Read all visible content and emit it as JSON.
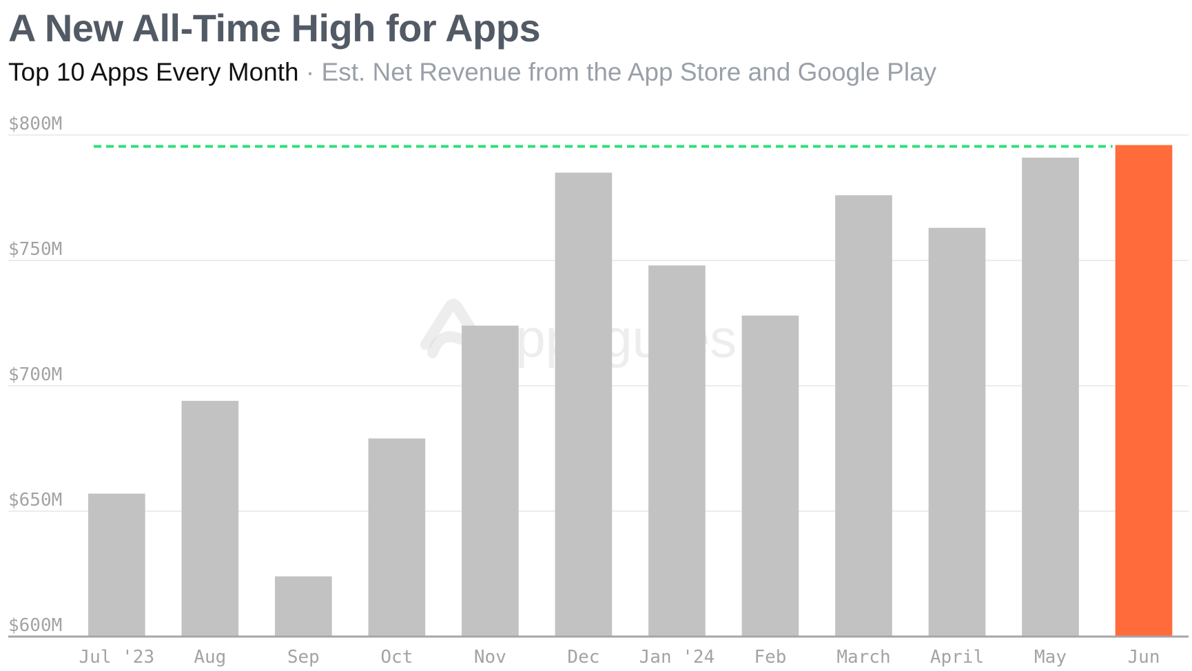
{
  "chart_data": {
    "type": "bar",
    "title": "A New All-Time High for Apps",
    "subtitle_main": "Top 10 Apps Every Month",
    "subtitle_separator": "·",
    "subtitle_rest": "Est. Net Revenue from the App Store and Google Play",
    "watermark": "appfigures",
    "categories": [
      "Jul '23",
      "Aug",
      "Sep",
      "Oct",
      "Nov",
      "Dec",
      "Jan '24",
      "Feb",
      "March",
      "April",
      "May",
      "Jun"
    ],
    "values": [
      657,
      694,
      624,
      679,
      724,
      785,
      748,
      728,
      776,
      763,
      791,
      796
    ],
    "unit": "$M",
    "ylim": [
      600,
      800
    ],
    "yticks": [
      600,
      650,
      700,
      750,
      800
    ],
    "ytick_labels": [
      "$600M",
      "$650M",
      "$700M",
      "$750M",
      "$800M"
    ],
    "reference_line": {
      "value": 796,
      "style": "dashed",
      "color": "#2ee07a"
    },
    "grid": true,
    "colors": {
      "bar": "#c2c2c2",
      "highlight_bar": "#ff6b3a",
      "highlight_index": 11,
      "grid": "#e6e6e6",
      "axis": "#a6a6a6",
      "title": "#525a65",
      "subtitle": "#111111",
      "subtitle_muted": "#9aa0a8",
      "tick_label": "#a3a3a3"
    }
  }
}
